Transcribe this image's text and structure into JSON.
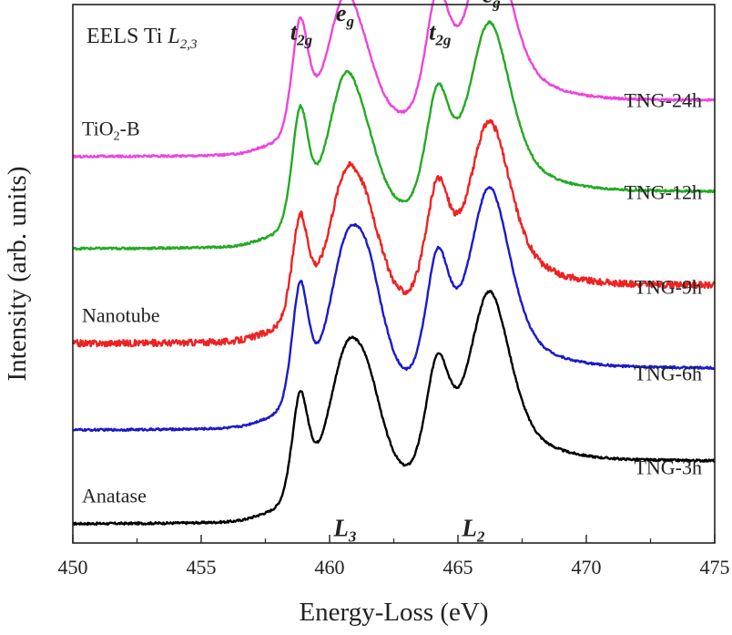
{
  "chart_data": {
    "type": "line",
    "title": "EELS Ti L2,3",
    "title_parts": {
      "prefix": "EELS Ti ",
      "element": "L",
      "sub": "2,3"
    },
    "xlabel": "Energy-Loss (eV)",
    "ylabel": "Intensity (arb. units)",
    "xlim": [
      450,
      475
    ],
    "ylim": [
      0,
      1.0
    ],
    "y_ticks_shown": false,
    "grid": false,
    "x_ticks": [
      450,
      455,
      460,
      465,
      470,
      475
    ],
    "x_tick_labels": [
      "450",
      "455",
      "460",
      "465",
      "470",
      "475"
    ],
    "curve_shape": {
      "onset_ev": 457.0,
      "peaks_ev": [
        458.85,
        460.6,
        461.5,
        464.2,
        466.2
      ]
    },
    "series": [
      {
        "name": "TNG-3h",
        "color": "#000000",
        "baseline": 0.035,
        "shoulder_ratio": 0.42,
        "noise": 0.002,
        "peak_heights": [
          0.19,
          0.215,
          0.135,
          0.21,
          0.29
        ]
      },
      {
        "name": "TNG-6h",
        "color": "#1a1acc",
        "baseline": 0.209,
        "shoulder_ratio": 0.4,
        "noise": 0.002,
        "peak_heights": [
          0.219,
          0.23,
          0.17,
          0.23,
          0.31
        ]
      },
      {
        "name": "TNG-9h",
        "color": "#ee2222",
        "baseline": 0.37,
        "shoulder_ratio": 0.32,
        "noise": 0.006,
        "peak_heights": [
          0.185,
          0.225,
          0.11,
          0.21,
          0.28
        ]
      },
      {
        "name": "TNG-12h",
        "color": "#22aa22",
        "baseline": 0.546,
        "shoulder_ratio": 0.3,
        "noise": 0.002,
        "peak_heights": [
          0.21,
          0.25,
          0.06,
          0.21,
          0.29
        ]
      },
      {
        "name": "TNG-24h",
        "color": "#ee44dd",
        "baseline": 0.717,
        "shoulder_ratio": 0.28,
        "noise": 0.002,
        "peak_heights": [
          0.205,
          0.235,
          0.04,
          0.22,
          0.29
        ]
      }
    ],
    "peak_annotations": [
      {
        "base": "t",
        "sub": "2g",
        "x": 458.9,
        "y": 0.965
      },
      {
        "base": "e",
        "sub": "g",
        "x": 460.6,
        "y": 1.0
      },
      {
        "base": "t",
        "sub": "2g",
        "x": 464.3,
        "y": 0.965
      },
      {
        "base": "e",
        "sub": "g",
        "x": 466.3,
        "y": 1.035
      }
    ],
    "edge_annotations": [
      {
        "base": "L",
        "sub": "3",
        "x": 460.6,
        "y": 0.013
      },
      {
        "base": "L",
        "sub": "2",
        "x": 465.6,
        "y": 0.013
      }
    ],
    "phase_annotations": [
      {
        "text": "TiO",
        "sub": "2",
        "suffix": "-B",
        "series": "TNG-24h"
      },
      {
        "text": "Nanotube",
        "sub": "",
        "suffix": "",
        "series": "TNG-9h"
      },
      {
        "text": "Anatase",
        "sub": "",
        "suffix": "",
        "series": "TNG-3h"
      }
    ]
  }
}
